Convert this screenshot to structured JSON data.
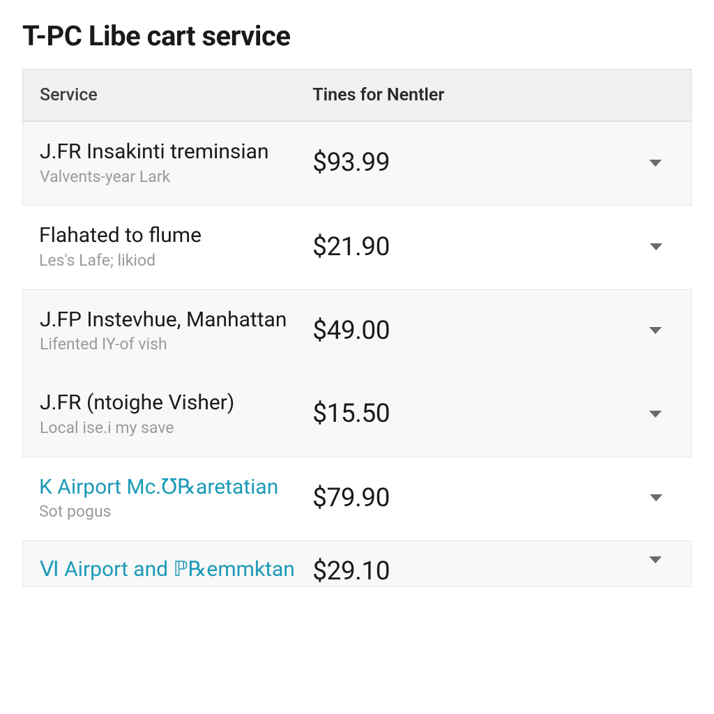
{
  "title": "T-PC Libe cart service",
  "table": {
    "headers": {
      "service": "Service",
      "price": "Tines for Nentler"
    },
    "colors": {
      "text_primary": "#1a1a1a",
      "text_muted": "#9a9a9a",
      "link": "#1b9ab8",
      "header_bg": "#f0f1f2",
      "tinted_bg": "#f7f8f8",
      "border": "#dcdcdc",
      "chevron": "#6a6a6a"
    },
    "typography": {
      "title_fontsize": 40,
      "header_fontsize": 25,
      "name_fontsize": 30,
      "sub_fontsize": 23,
      "price_fontsize": 37
    },
    "rows": [
      {
        "name": "J.FR Insakinti treminsian",
        "sub": "Valvents-year Lark",
        "price": "$93.99",
        "link_style": false
      },
      {
        "name": "Flahated to flume",
        "sub": "Les's Lafe; likiod",
        "price": "$21.90",
        "link_style": false
      },
      {
        "name": "J.FP Instevhue, Manhattan",
        "sub": "Lifented IY-of vish",
        "price": "$49.00",
        "link_style": false
      },
      {
        "name": "J.FR (ntoighe Visher)",
        "sub": "Local ise.i my save",
        "price": "$15.50",
        "link_style": false
      },
      {
        "name": "K Airport  Mc.℧℞aretatian",
        "sub": "Sot pogus",
        "price": "$79.90",
        "link_style": true
      }
    ],
    "partial_row": {
      "name": "Ⅵ Airport and ℙ℞emmktan",
      "price": "$29.10",
      "link_style": true
    }
  }
}
